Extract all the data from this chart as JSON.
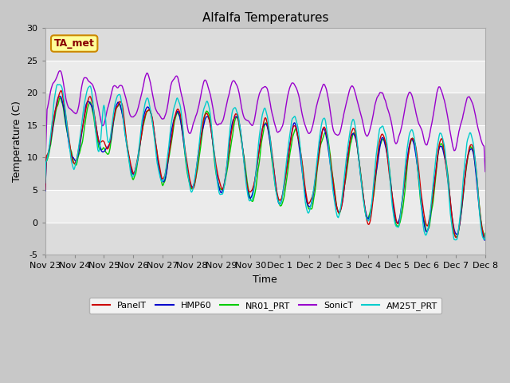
{
  "title": "Alfalfa Temperatures",
  "xlabel": "Time",
  "ylabel": "Temperature (C)",
  "ylim": [
    -5,
    30
  ],
  "annotation": "TA_met",
  "annotation_color": "#880000",
  "annotation_bg": "#ffff99",
  "annotation_border": "#cc8800",
  "series": {
    "PanelT": {
      "color": "#cc0000",
      "lw": 1.0
    },
    "HMP60": {
      "color": "#0000cc",
      "lw": 1.0
    },
    "NR01_PRT": {
      "color": "#00cc00",
      "lw": 1.0
    },
    "SonicT": {
      "color": "#9900cc",
      "lw": 1.0
    },
    "AM25T_PRT": {
      "color": "#00cccc",
      "lw": 1.0
    }
  },
  "xtick_labels": [
    "Nov 23",
    "Nov 24",
    "Nov 25",
    "Nov 26",
    "Nov 27",
    "Nov 28",
    "Nov 29",
    "Nov 30",
    "Dec 1",
    "Dec 2",
    "Dec 3",
    "Dec 4",
    "Dec 5",
    "Dec 6",
    "Dec 7",
    "Dec 8"
  ],
  "ytick_labels": [
    -5,
    0,
    5,
    10,
    15,
    20,
    25,
    30
  ],
  "title_fontsize": 11,
  "axis_label_fontsize": 9,
  "tick_fontsize": 8,
  "legend_fontsize": 8,
  "band_colors": [
    "#dcdcdc",
    "#ebebeb"
  ],
  "fig_bg": "#c8c8c8",
  "ax_bg": "#dcdcdc"
}
